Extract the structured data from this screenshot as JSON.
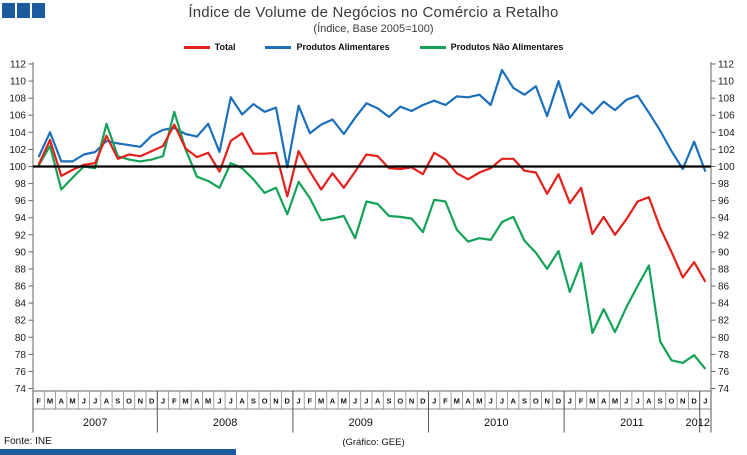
{
  "header": {
    "title": "Índice de Volume de Negócios no Comércio a Retalho",
    "subtitle": "(Índice, Base 2005=100)"
  },
  "footer": {
    "source": "Fonte: INE",
    "credit": "(Gráfico: GEE)"
  },
  "colors": {
    "logo": "#1c5c9e",
    "reference_line": "#000000",
    "axis": "#666666",
    "total": "#e4201c",
    "alimentares": "#1c6fba",
    "nao_alimentares": "#13a257"
  },
  "chart_data": {
    "type": "line",
    "title": "Índice de Volume de Negócios no Comércio a Retalho",
    "subtitle": "(Índice, Base 2005=100)",
    "xlabel": "",
    "ylabel": "",
    "ylim": [
      74,
      112
    ],
    "ytick_step": 2,
    "grid": false,
    "legend_position": "top-center",
    "reference_value": 100,
    "x_months": [
      "F",
      "M",
      "A",
      "M",
      "J",
      "J",
      "A",
      "S",
      "O",
      "N",
      "D",
      "J",
      "F",
      "M",
      "A",
      "M",
      "J",
      "J",
      "A",
      "S",
      "O",
      "N",
      "D",
      "J",
      "F",
      "M",
      "A",
      "M",
      "J",
      "J",
      "A",
      "S",
      "O",
      "N",
      "D",
      "J",
      "F",
      "M",
      "A",
      "M",
      "J",
      "J",
      "A",
      "S",
      "O",
      "N",
      "D",
      "J",
      "F",
      "M",
      "A",
      "M",
      "J",
      "J",
      "A",
      "S",
      "O",
      "N",
      "D",
      "J"
    ],
    "year_groups": [
      {
        "label": "2007",
        "months": 11
      },
      {
        "label": "2008",
        "months": 12
      },
      {
        "label": "2009",
        "months": 12
      },
      {
        "label": "2010",
        "months": 12
      },
      {
        "label": "2011",
        "months": 12
      },
      {
        "label": "2012",
        "months": 1
      }
    ],
    "series": [
      {
        "name": "Total",
        "color": "#e4201c",
        "values": [
          100.2,
          103.1,
          98.9,
          99.6,
          100.2,
          100.4,
          103.6,
          100.9,
          101.4,
          101.2,
          101.8,
          102.4,
          104.9,
          102.1,
          101.1,
          101.6,
          99.4,
          103.0,
          103.9,
          101.5,
          101.5,
          101.6,
          96.5,
          101.8,
          99.4,
          97.3,
          99.2,
          97.5,
          99.4,
          101.4,
          101.2,
          99.8,
          99.7,
          99.9,
          99.1,
          101.6,
          100.8,
          99.2,
          98.5,
          99.3,
          99.8,
          100.9,
          100.9,
          99.5,
          99.3,
          96.8,
          99.1,
          95.7,
          97.5,
          92.1,
          94.1,
          92.0,
          93.8,
          95.9,
          96.4,
          92.8,
          90.0,
          87.0,
          88.8,
          86.5
        ]
      },
      {
        "name": "Produtos Alimentares",
        "color": "#1c6fba",
        "values": [
          101.1,
          104.0,
          100.6,
          100.6,
          101.4,
          101.7,
          103.0,
          102.7,
          102.5,
          102.3,
          103.6,
          104.3,
          104.5,
          103.8,
          103.5,
          105.0,
          101.7,
          108.1,
          106.1,
          107.3,
          106.4,
          106.9,
          99.9,
          107.1,
          103.9,
          104.9,
          105.5,
          103.8,
          105.7,
          107.4,
          106.8,
          105.8,
          107.0,
          106.5,
          107.2,
          107.7,
          107.2,
          108.2,
          108.1,
          108.4,
          107.2,
          111.3,
          109.2,
          108.4,
          109.4,
          105.9,
          110.0,
          105.7,
          107.4,
          106.2,
          107.6,
          106.6,
          107.8,
          108.3,
          106.3,
          104.2,
          101.8,
          99.7,
          102.9,
          99.4
        ]
      },
      {
        "name": "Produtos Não Alimentares",
        "color": "#13a257",
        "values": [
          100.1,
          102.4,
          97.3,
          98.7,
          100.0,
          99.8,
          105.0,
          101.2,
          100.8,
          100.6,
          100.8,
          101.2,
          106.4,
          102.0,
          98.8,
          98.3,
          97.5,
          100.4,
          99.8,
          98.5,
          96.9,
          97.5,
          94.4,
          98.2,
          96.3,
          93.7,
          93.9,
          94.2,
          91.6,
          95.9,
          95.6,
          94.2,
          94.1,
          93.9,
          92.3,
          96.1,
          95.9,
          92.6,
          91.2,
          91.6,
          91.4,
          93.5,
          94.1,
          91.3,
          89.9,
          88.0,
          90.1,
          85.3,
          88.7,
          80.5,
          83.3,
          80.6,
          83.5,
          86.0,
          88.4,
          79.5,
          77.3,
          77.0,
          77.9,
          76.3
        ]
      }
    ]
  }
}
